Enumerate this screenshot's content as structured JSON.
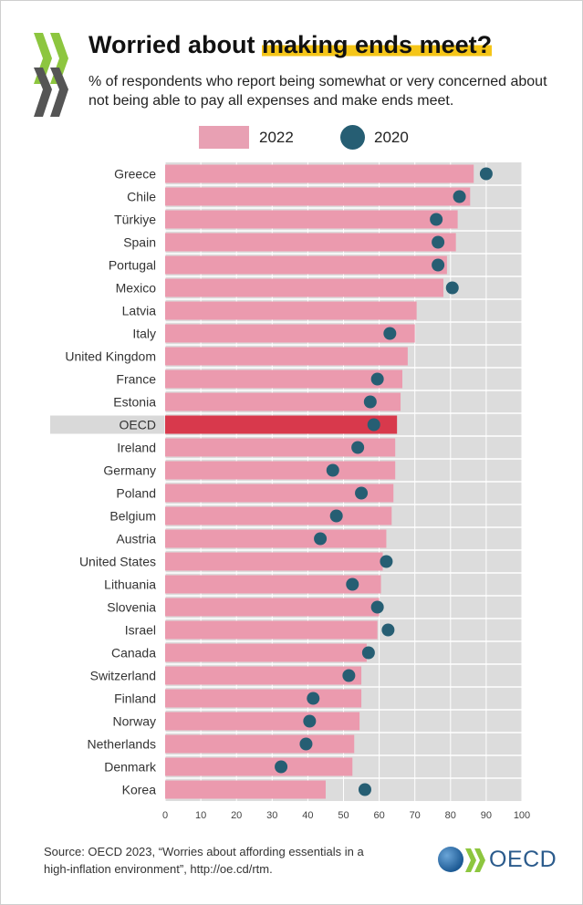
{
  "header": {
    "title_pre": "Worried about ",
    "title_highlight": "making ends meet?",
    "subtitle": "% of respondents who report being somewhat or very concerned about not being able to pay all expenses and make ends meet."
  },
  "legend": {
    "series_2022": "2022",
    "series_2020": "2020"
  },
  "colors": {
    "bar_2022": "#eb9aae",
    "bar_oecd": "#d8394c",
    "dot_2020": "#265e73",
    "track": "#dcdcdc",
    "highlight_row": "#d9d9d9",
    "title_highlight": "#f5c518"
  },
  "chart_data": {
    "type": "bar",
    "orientation": "horizontal",
    "xlim": [
      0,
      100
    ],
    "xticks": [
      0,
      10,
      20,
      30,
      40,
      50,
      60,
      70,
      80,
      90,
      100
    ],
    "grid": true,
    "legend_position": "top",
    "highlight_category": "OECD",
    "categories": [
      "Greece",
      "Chile",
      "Türkiye",
      "Spain",
      "Portugal",
      "Mexico",
      "Latvia",
      "Italy",
      "United Kingdom",
      "France",
      "Estonia",
      "OECD",
      "Ireland",
      "Germany",
      "Poland",
      "Belgium",
      "Austria",
      "United States",
      "Lithuania",
      "Slovenia",
      "Israel",
      "Canada",
      "Switzerland",
      "Finland",
      "Norway",
      "Netherlands",
      "Denmark",
      "Korea"
    ],
    "series": [
      {
        "name": "2022",
        "kind": "bar",
        "values": [
          86.5,
          85.5,
          82,
          81.5,
          79,
          78,
          70.5,
          70,
          68,
          66.5,
          66,
          65,
          64.5,
          64.5,
          64,
          63.5,
          62,
          61,
          60.5,
          60,
          59.5,
          56.5,
          55,
          55,
          54.5,
          53,
          52.5,
          45
        ]
      },
      {
        "name": "2020",
        "kind": "dot",
        "values": [
          90,
          82.5,
          76,
          76.5,
          76.5,
          80.5,
          null,
          63,
          null,
          59.5,
          57.5,
          58.5,
          54,
          47,
          55,
          48,
          43.5,
          62,
          52.5,
          59.5,
          62.5,
          57,
          51.5,
          41.5,
          40.5,
          39.5,
          32.5,
          56
        ]
      }
    ]
  },
  "footer": {
    "source_line1": "Source: OECD 2023, “Worries about affording essentials in a",
    "source_line2": "high-inflation environment”,  http://oe.cd/rtm.",
    "oecd_logo_text": "OECD"
  }
}
